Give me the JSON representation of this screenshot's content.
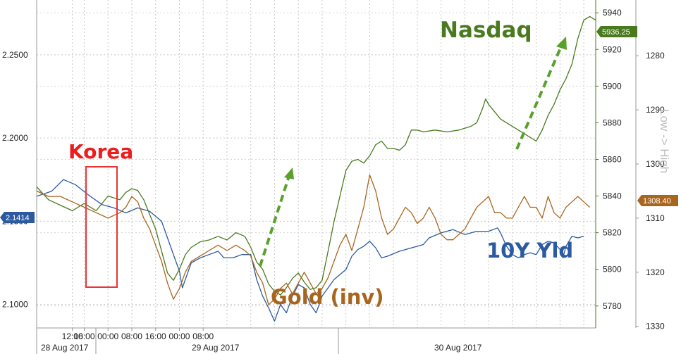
{
  "chart_data": {
    "type": "line",
    "title": "",
    "x_date_labels": [
      "28 Aug 2017",
      "29 Aug 2017",
      "30 Aug 2017"
    ],
    "x_tick_labels": [
      "12:00",
      "16:00",
      "00:00",
      "08:00",
      "16:00",
      "00:00",
      "08:00"
    ],
    "axes": {
      "left": {
        "series": "10Y Yld",
        "ticks": [
          "2.1000",
          "2.1500",
          "2.2000",
          "2.2500"
        ],
        "range": [
          2.0859,
          2.2829
        ]
      },
      "nasdaq": {
        "series": "Nasdaq",
        "ticks": [
          "5780",
          "5800",
          "5820",
          "5840",
          "5860",
          "5880",
          "5900",
          "5920",
          "5940"
        ],
        "range": [
          5768,
          5947
        ]
      },
      "gold": {
        "series": "Gold (inv)",
        "inverted": true,
        "ticks": [
          "1280",
          "1290",
          "1300",
          "1310",
          "1320",
          "1330"
        ],
        "range": [
          1269.7,
          1330.3
        ],
        "label": "Low -> High"
      }
    },
    "last_values": {
      "yield": "2.1414",
      "nasdaq": "5936.25",
      "gold": "1308.40"
    },
    "series": [
      {
        "name": "10Y Yld",
        "color": "#2b5aa0",
        "axis": "left",
        "points": [
          [
            0,
            2.165
          ],
          [
            5,
            2.168
          ],
          [
            9,
            2.175
          ],
          [
            13,
            2.172
          ],
          [
            18,
            2.165
          ],
          [
            22,
            2.16
          ],
          [
            26,
            2.158
          ],
          [
            30,
            2.155
          ],
          [
            34,
            2.158
          ],
          [
            38,
            2.156
          ],
          [
            40,
            2.153
          ],
          [
            42,
            2.15
          ],
          [
            44,
            2.14
          ],
          [
            46,
            2.13
          ],
          [
            48,
            2.12
          ],
          [
            49,
            2.11
          ],
          [
            50,
            2.115
          ],
          [
            52,
            2.125
          ],
          [
            55,
            2.128
          ],
          [
            58,
            2.13
          ],
          [
            61,
            2.132
          ],
          [
            63,
            2.128
          ],
          [
            66,
            2.128
          ],
          [
            69,
            2.13
          ],
          [
            72,
            2.13
          ],
          [
            74,
            2.115
          ],
          [
            76,
            2.105
          ],
          [
            78,
            2.098
          ],
          [
            80,
            2.09
          ],
          [
            82,
            2.1
          ],
          [
            84,
            2.095
          ],
          [
            86,
            2.105
          ],
          [
            88,
            2.112
          ],
          [
            90,
            2.11
          ],
          [
            92,
            2.1
          ],
          [
            94,
            2.095
          ],
          [
            95,
            2.1
          ],
          [
            96,
            2.105
          ],
          [
            98,
            2.11
          ],
          [
            100,
            2.115
          ],
          [
            102,
            2.118
          ],
          [
            104,
            2.121
          ],
          [
            106,
            2.129
          ],
          [
            108,
            2.133
          ],
          [
            110,
            2.135
          ],
          [
            112,
            2.138
          ],
          [
            114,
            2.134
          ],
          [
            116,
            2.128
          ],
          [
            118,
            2.129
          ],
          [
            122,
            2.132
          ],
          [
            126,
            2.134
          ],
          [
            130,
            2.136
          ],
          [
            132,
            2.14
          ],
          [
            136,
            2.143
          ],
          [
            140,
            2.145
          ],
          [
            144,
            2.142
          ],
          [
            148,
            2.144
          ],
          [
            152,
            2.144
          ],
          [
            155,
            2.146
          ],
          [
            156,
            2.143
          ],
          [
            158,
            2.135
          ],
          [
            160,
            2.13
          ],
          [
            162,
            2.128
          ],
          [
            164,
            2.13
          ],
          [
            166,
            2.131
          ],
          [
            168,
            2.13
          ],
          [
            170,
            2.136
          ],
          [
            172,
            2.138
          ],
          [
            174,
            2.137
          ],
          [
            176,
            2.133
          ],
          [
            177,
            2.128
          ],
          [
            178,
            2.135
          ],
          [
            180,
            2.141
          ],
          [
            182,
            2.14
          ],
          [
            184,
            2.141
          ]
        ]
      },
      {
        "name": "Nasdaq",
        "color": "#4a7a1e",
        "axis": "nasdaq",
        "points": [
          [
            0,
            5845
          ],
          [
            4,
            5838
          ],
          [
            8,
            5835
          ],
          [
            12,
            5832
          ],
          [
            16,
            5836
          ],
          [
            20,
            5832
          ],
          [
            24,
            5840
          ],
          [
            28,
            5838
          ],
          [
            30,
            5842
          ],
          [
            32,
            5844
          ],
          [
            34,
            5843
          ],
          [
            36,
            5838
          ],
          [
            38,
            5830
          ],
          [
            40,
            5822
          ],
          [
            42,
            5810
          ],
          [
            44,
            5798
          ],
          [
            46,
            5794
          ],
          [
            48,
            5800
          ],
          [
            50,
            5808
          ],
          [
            52,
            5812
          ],
          [
            55,
            5815
          ],
          [
            58,
            5816
          ],
          [
            61,
            5818
          ],
          [
            64,
            5816
          ],
          [
            67,
            5820
          ],
          [
            70,
            5818
          ],
          [
            72,
            5812
          ],
          [
            74,
            5804
          ],
          [
            76,
            5800
          ],
          [
            78,
            5792
          ],
          [
            80,
            5788
          ],
          [
            82,
            5786
          ],
          [
            84,
            5790
          ],
          [
            86,
            5795
          ],
          [
            88,
            5798
          ],
          [
            90,
            5793
          ],
          [
            92,
            5789
          ],
          [
            94,
            5790
          ],
          [
            96,
            5794
          ],
          [
            98,
            5810
          ],
          [
            100,
            5826
          ],
          [
            102,
            5840
          ],
          [
            104,
            5854
          ],
          [
            106,
            5859
          ],
          [
            108,
            5860
          ],
          [
            110,
            5858
          ],
          [
            112,
            5862
          ],
          [
            114,
            5868
          ],
          [
            116,
            5870
          ],
          [
            118,
            5866
          ],
          [
            120,
            5866
          ],
          [
            122,
            5865
          ],
          [
            124,
            5868
          ],
          [
            126,
            5876
          ],
          [
            128,
            5876
          ],
          [
            130,
            5875
          ],
          [
            134,
            5876
          ],
          [
            138,
            5875
          ],
          [
            142,
            5876
          ],
          [
            146,
            5878
          ],
          [
            148,
            5880
          ],
          [
            150,
            5888
          ],
          [
            151,
            5893
          ],
          [
            152,
            5890
          ],
          [
            154,
            5886
          ],
          [
            156,
            5882
          ],
          [
            158,
            5880
          ],
          [
            160,
            5878
          ],
          [
            162,
            5876
          ],
          [
            164,
            5874
          ],
          [
            166,
            5872
          ],
          [
            168,
            5870
          ],
          [
            170,
            5876
          ],
          [
            172,
            5884
          ],
          [
            174,
            5890
          ],
          [
            176,
            5898
          ],
          [
            178,
            5904
          ],
          [
            180,
            5912
          ],
          [
            182,
            5926
          ],
          [
            184,
            5936
          ],
          [
            186,
            5938
          ],
          [
            188,
            5936
          ]
        ]
      },
      {
        "name": "Gold (inv)",
        "color": "#a8651e",
        "axis": "gold",
        "points": [
          [
            0,
            1305
          ],
          [
            4,
            1306
          ],
          [
            8,
            1306
          ],
          [
            12,
            1307
          ],
          [
            16,
            1308
          ],
          [
            20,
            1309
          ],
          [
            24,
            1310
          ],
          [
            28,
            1309
          ],
          [
            30,
            1308
          ],
          [
            32,
            1306
          ],
          [
            34,
            1307
          ],
          [
            36,
            1310
          ],
          [
            38,
            1312
          ],
          [
            40,
            1315
          ],
          [
            42,
            1318
          ],
          [
            44,
            1322
          ],
          [
            46,
            1325
          ],
          [
            48,
            1323
          ],
          [
            50,
            1320
          ],
          [
            52,
            1318
          ],
          [
            55,
            1317
          ],
          [
            58,
            1316
          ],
          [
            61,
            1315
          ],
          [
            64,
            1316
          ],
          [
            67,
            1315
          ],
          [
            70,
            1316
          ],
          [
            72,
            1317
          ],
          [
            74,
            1320
          ],
          [
            76,
            1322
          ],
          [
            78,
            1326
          ],
          [
            80,
            1325
          ],
          [
            82,
            1323
          ],
          [
            84,
            1322
          ],
          [
            86,
            1324
          ],
          [
            88,
            1322
          ],
          [
            90,
            1320
          ],
          [
            92,
            1322
          ],
          [
            94,
            1324
          ],
          [
            96,
            1323
          ],
          [
            98,
            1321
          ],
          [
            100,
            1318
          ],
          [
            102,
            1315
          ],
          [
            104,
            1313
          ],
          [
            106,
            1316
          ],
          [
            108,
            1312
          ],
          [
            110,
            1308
          ],
          [
            112,
            1302
          ],
          [
            114,
            1305
          ],
          [
            116,
            1310
          ],
          [
            118,
            1313
          ],
          [
            120,
            1312
          ],
          [
            122,
            1310
          ],
          [
            124,
            1308
          ],
          [
            126,
            1309
          ],
          [
            128,
            1311
          ],
          [
            130,
            1310
          ],
          [
            132,
            1308
          ],
          [
            134,
            1310
          ],
          [
            136,
            1313
          ],
          [
            138,
            1314
          ],
          [
            140,
            1314
          ],
          [
            142,
            1313
          ],
          [
            144,
            1312
          ],
          [
            146,
            1310
          ],
          [
            148,
            1308
          ],
          [
            150,
            1307
          ],
          [
            152,
            1306
          ],
          [
            154,
            1309
          ],
          [
            156,
            1309
          ],
          [
            158,
            1310
          ],
          [
            160,
            1310
          ],
          [
            162,
            1308
          ],
          [
            164,
            1306
          ],
          [
            166,
            1308
          ],
          [
            168,
            1308
          ],
          [
            170,
            1310
          ],
          [
            172,
            1306
          ],
          [
            174,
            1309
          ],
          [
            176,
            1310
          ],
          [
            178,
            1308
          ],
          [
            180,
            1307
          ],
          [
            182,
            1306
          ],
          [
            184,
            1307
          ],
          [
            186,
            1308
          ]
        ]
      }
    ],
    "annotations": [
      {
        "text": "Korea",
        "color": "#ee1c1c"
      },
      {
        "text": "Nasdaq",
        "color": "#4a7a1e"
      },
      {
        "text": "Gold (inv)",
        "color": "#a8651e"
      },
      {
        "text": "10Y Yld",
        "color": "#2b5aa0"
      }
    ],
    "arrow_color": "#5aa02c",
    "box_color": "#ee3333",
    "grid": true
  }
}
